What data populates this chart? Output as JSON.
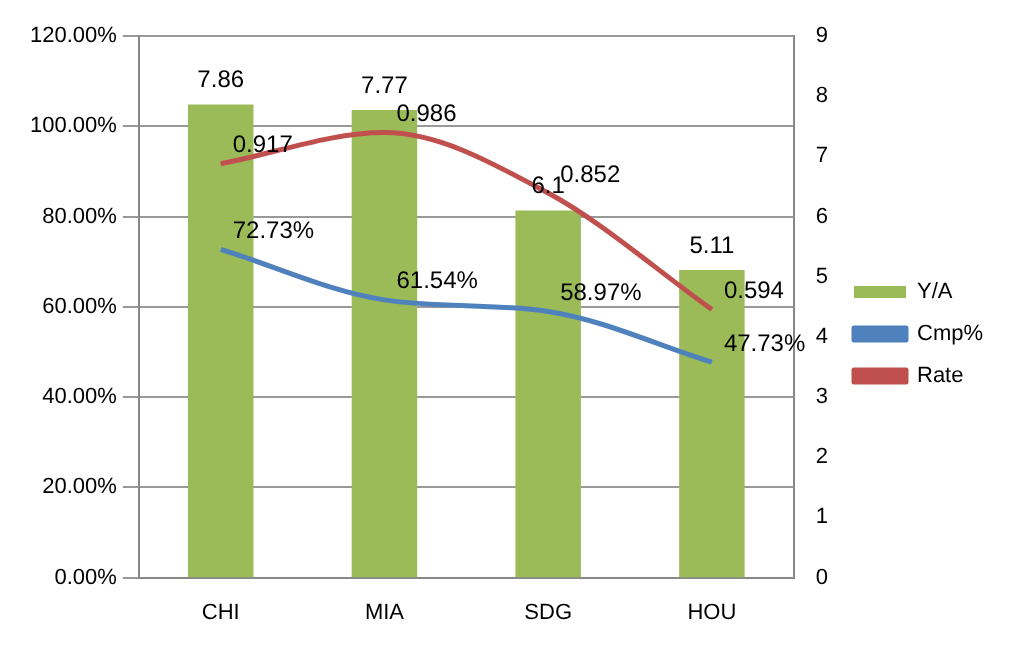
{
  "chart_data": {
    "type": "bar",
    "categories": [
      "CHI",
      "MIA",
      "SDG",
      "HOU"
    ],
    "series": [
      {
        "name": "Y/A",
        "axis": "y2",
        "color": "#9bbb59",
        "values": [
          7.86,
          7.77,
          6.1,
          5.11
        ],
        "value_labels": [
          "7.86",
          "7.77",
          "6.1",
          "5.11"
        ]
      },
      {
        "name": "Cmp%",
        "type": "line",
        "color": "#4f81bd",
        "values": [
          0.7273,
          0.6154,
          0.5897,
          0.4773
        ],
        "value_labels": [
          "72.73%",
          "61.54%",
          "58.97%",
          "47.73%"
        ]
      },
      {
        "name": "Rate",
        "type": "line",
        "color": "#c0504d",
        "values": [
          0.917,
          0.986,
          0.852,
          0.594
        ],
        "value_labels": [
          "0.917",
          "0.986",
          "0.852",
          "0.594"
        ]
      }
    ],
    "ylim": [
      0,
      1.2
    ],
    "yticks": [
      {
        "value": 0,
        "label": "0.00%"
      },
      {
        "value": 0.2,
        "label": "20.00%"
      },
      {
        "value": 0.4,
        "label": "40.00%"
      },
      {
        "value": 0.6,
        "label": "60.00%"
      },
      {
        "value": 0.8,
        "label": "80.00%"
      },
      {
        "value": 1,
        "label": "100.00%"
      },
      {
        "value": 1.2,
        "label": "120.00%"
      }
    ],
    "y2lim": [
      0,
      9
    ],
    "y2ticks": [
      0,
      1,
      2,
      3,
      4,
      5,
      6,
      7,
      8,
      9
    ],
    "grid": "y",
    "legend": "right",
    "marker": "none"
  }
}
